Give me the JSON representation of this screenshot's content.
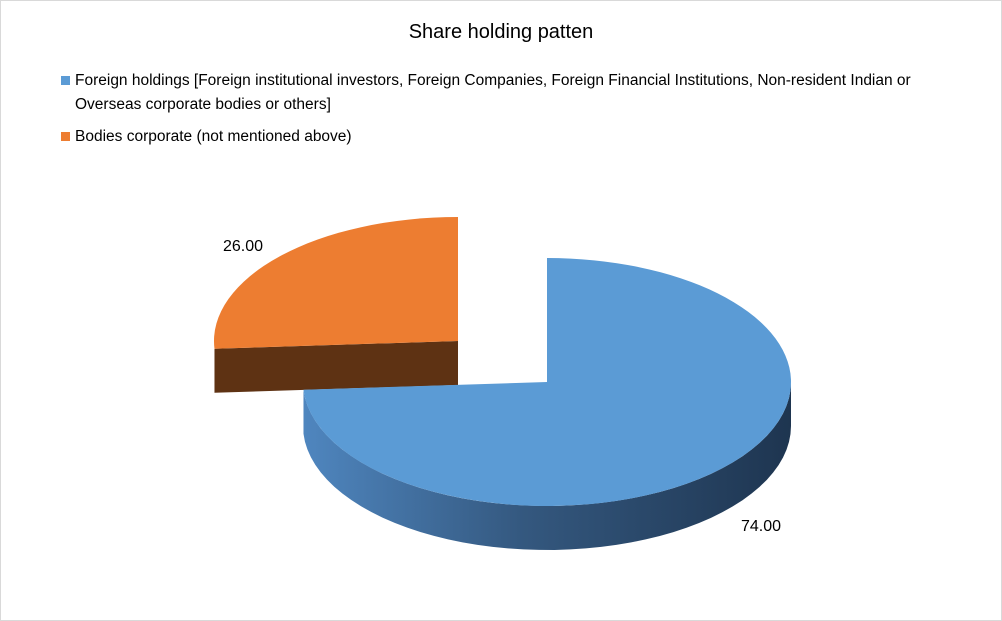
{
  "chart_data": {
    "type": "pie",
    "style": "3d-exploded",
    "title": "Share holding patten",
    "legend_position": "top",
    "series": [
      {
        "label": "Foreign holdings [Foreign institutional investors, Foreign Companies, Foreign Financial Institutions, Non-resident Indian or Overseas corporate bodies or others]",
        "value": 74.0,
        "display_value": "74.00",
        "color": "#5b9bd5",
        "side_color": "#2b4a6c"
      },
      {
        "label": "Bodies corporate (not mentioned above)",
        "value": 26.0,
        "display_value": "26.00",
        "color": "#ed7d31",
        "side_color": "#5e3213"
      }
    ]
  }
}
